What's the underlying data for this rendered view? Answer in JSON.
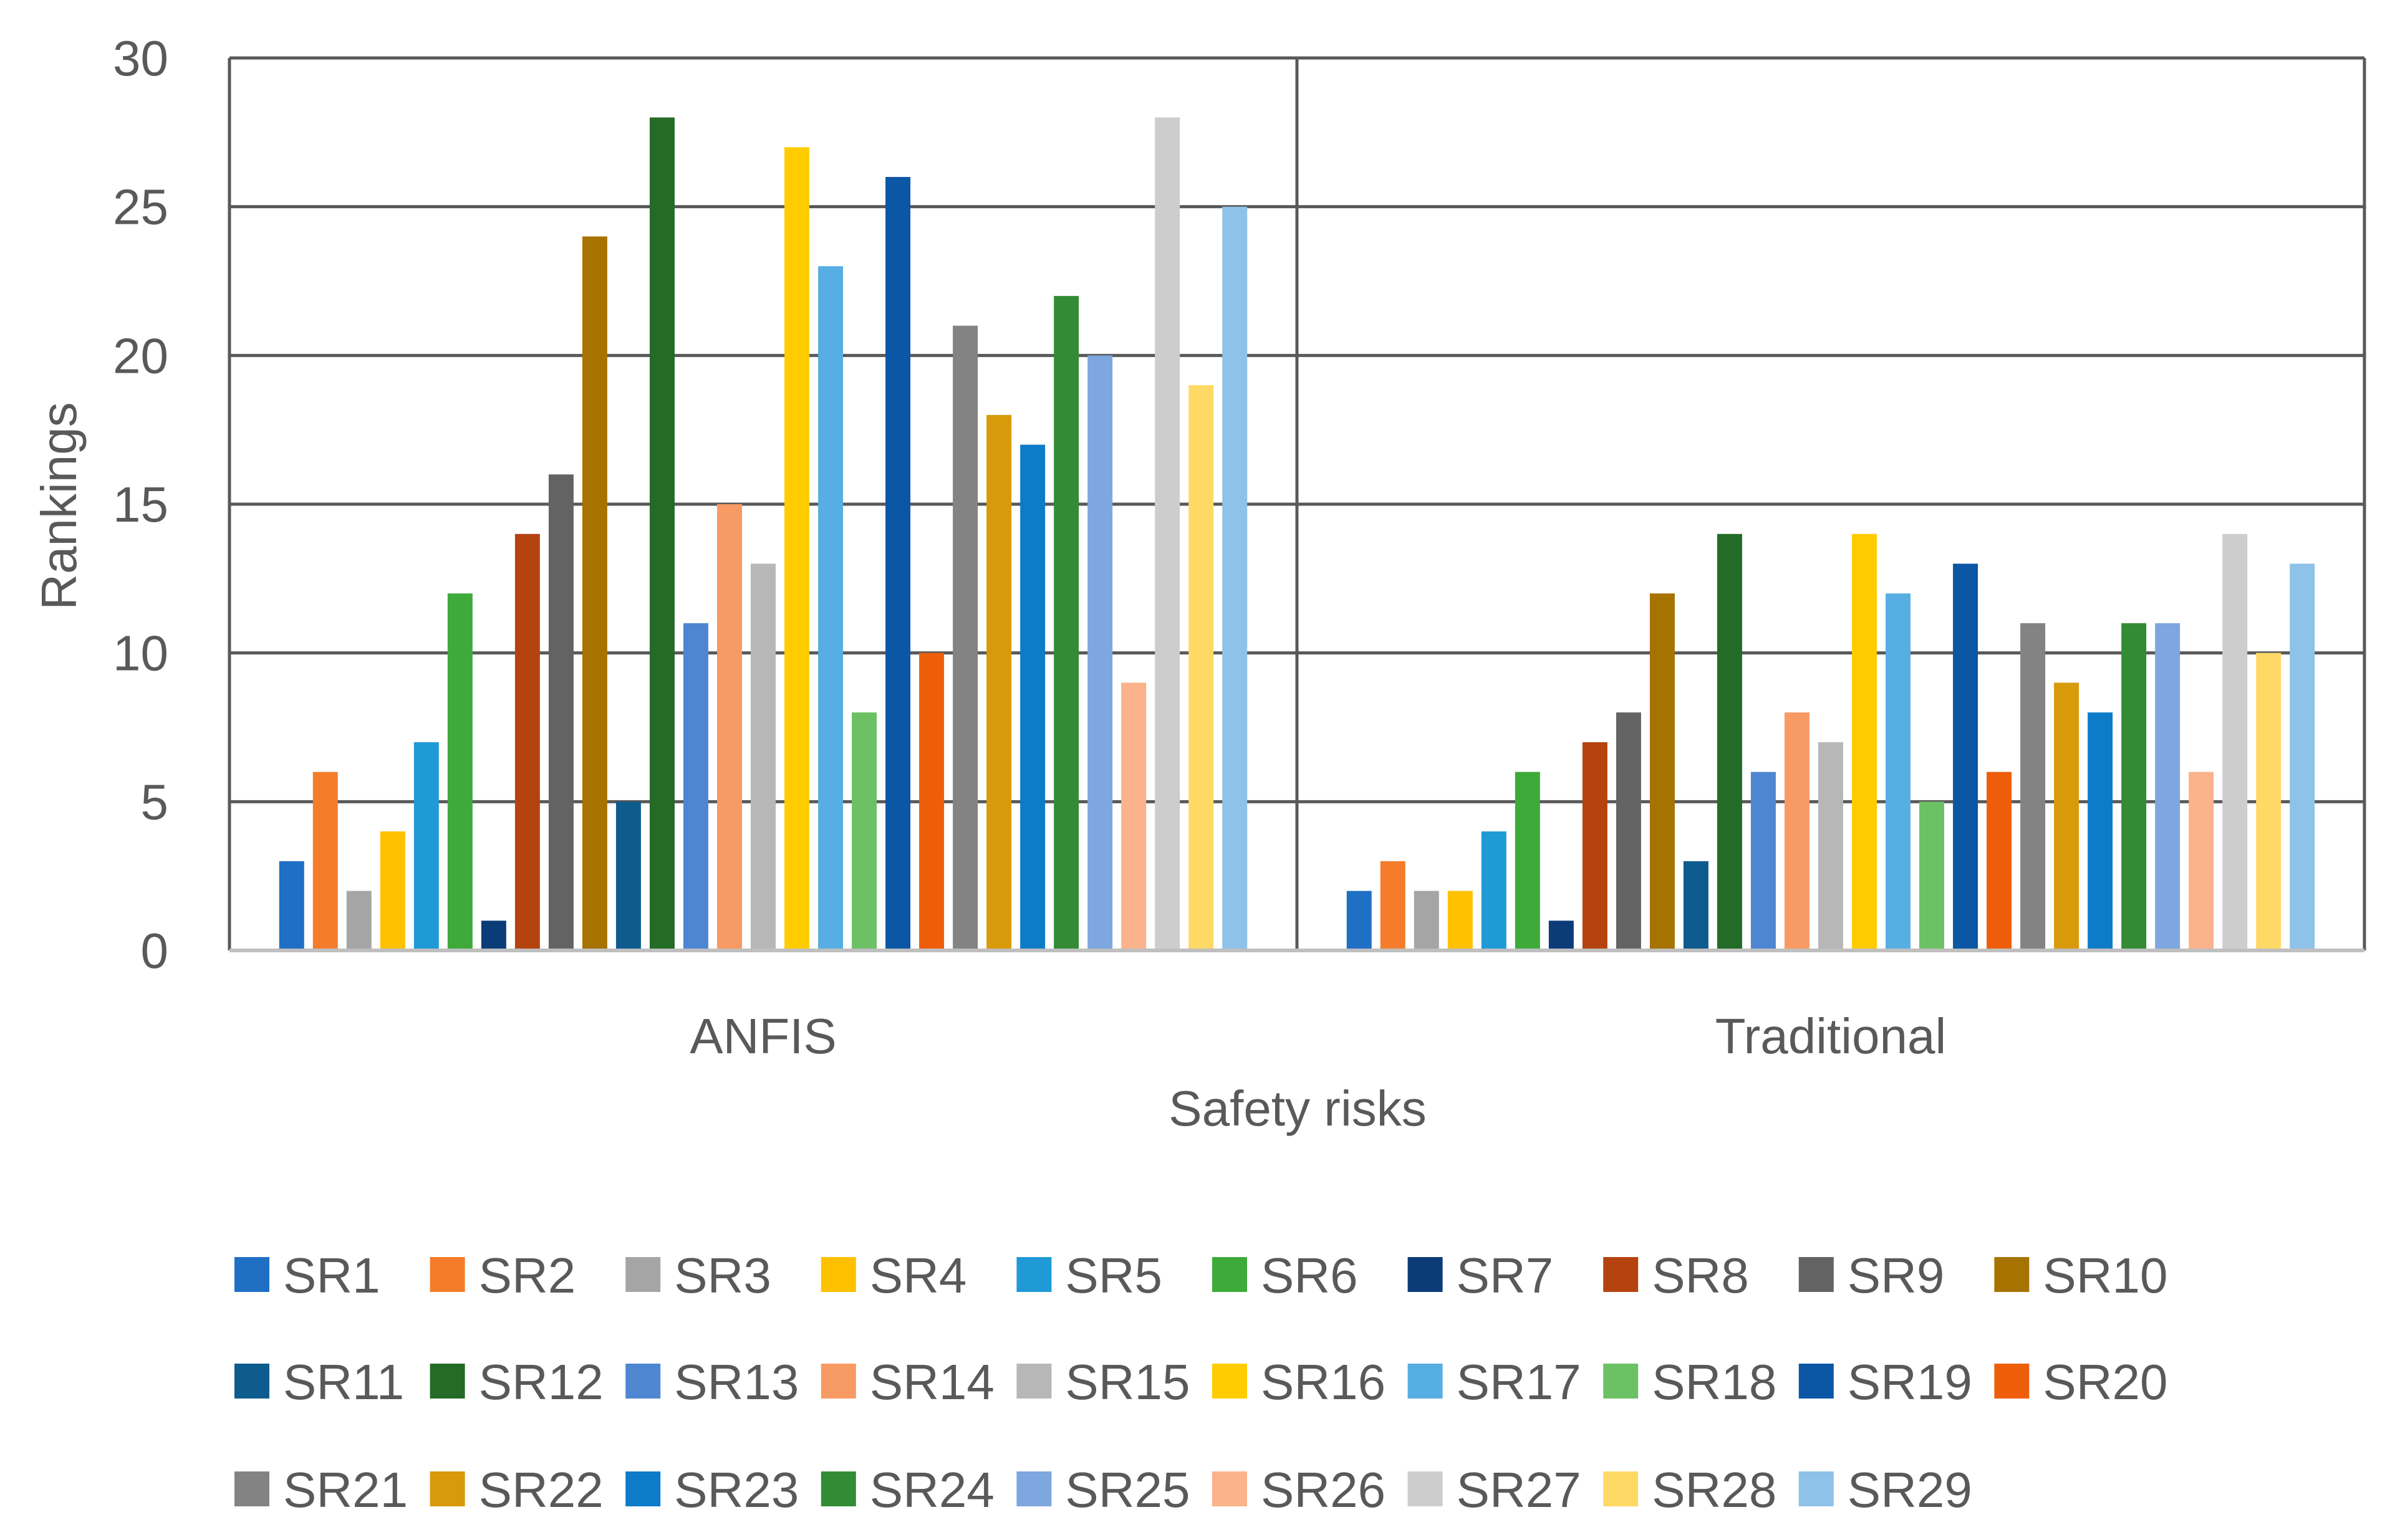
{
  "chart_data": {
    "type": "bar",
    "title": "",
    "xlabel": "Safety risks",
    "ylabel": "Rankings",
    "ylim": [
      0,
      30
    ],
    "yticks": [
      0,
      5,
      10,
      15,
      20,
      25,
      30
    ],
    "grid": true,
    "legend_position": "bottom",
    "categories": [
      "ANFIS",
      "Traditional"
    ],
    "series": [
      {
        "name": "SR1",
        "color": "#1F6FC5",
        "values": [
          3,
          2
        ]
      },
      {
        "name": "SR2",
        "color": "#F47C2A",
        "values": [
          6,
          3
        ]
      },
      {
        "name": "SR3",
        "color": "#A5A5A5",
        "values": [
          2,
          2
        ]
      },
      {
        "name": "SR4",
        "color": "#FFC000",
        "values": [
          4,
          2
        ]
      },
      {
        "name": "SR5",
        "color": "#1F9AD6",
        "values": [
          7,
          4
        ]
      },
      {
        "name": "SR6",
        "color": "#3DAA3A",
        "values": [
          12,
          6
        ]
      },
      {
        "name": "SR7",
        "color": "#0B3C78",
        "values": [
          1,
          1
        ]
      },
      {
        "name": "SR8",
        "color": "#B5430F",
        "values": [
          14,
          7
        ]
      },
      {
        "name": "SR9",
        "color": "#636363",
        "values": [
          16,
          8
        ]
      },
      {
        "name": "SR10",
        "color": "#A67200",
        "values": [
          24,
          12
        ]
      },
      {
        "name": "SR11",
        "color": "#0E5C8E",
        "values": [
          5,
          3
        ]
      },
      {
        "name": "SR12",
        "color": "#236B26",
        "values": [
          28,
          14
        ]
      },
      {
        "name": "SR13",
        "color": "#4E86D2",
        "values": [
          11,
          6
        ]
      },
      {
        "name": "SR14",
        "color": "#F79A63",
        "values": [
          15,
          8
        ]
      },
      {
        "name": "SR15",
        "color": "#B7B7B7",
        "values": [
          13,
          7
        ]
      },
      {
        "name": "SR16",
        "color": "#FFCC00",
        "values": [
          27,
          14
        ]
      },
      {
        "name": "SR17",
        "color": "#56AEE2",
        "values": [
          23,
          12
        ]
      },
      {
        "name": "SR18",
        "color": "#6CC165",
        "values": [
          8,
          5
        ]
      },
      {
        "name": "SR19",
        "color": "#0B56A5",
        "values": [
          26,
          13
        ]
      },
      {
        "name": "SR20",
        "color": "#EE5E0A",
        "values": [
          10,
          6
        ]
      },
      {
        "name": "SR21",
        "color": "#838383",
        "values": [
          21,
          11
        ]
      },
      {
        "name": "SR22",
        "color": "#D89A0B",
        "values": [
          18,
          9
        ]
      },
      {
        "name": "SR23",
        "color": "#0E7BC9",
        "values": [
          17,
          8
        ]
      },
      {
        "name": "SR24",
        "color": "#338C35",
        "values": [
          22,
          11
        ]
      },
      {
        "name": "SR25",
        "color": "#7EA6DF",
        "values": [
          20,
          11
        ]
      },
      {
        "name": "SR26",
        "color": "#FAB38B",
        "values": [
          9,
          6
        ]
      },
      {
        "name": "SR27",
        "color": "#CDCDCD",
        "values": [
          28,
          14
        ]
      },
      {
        "name": "SR28",
        "color": "#FFD966",
        "values": [
          19,
          10
        ]
      },
      {
        "name": "SR29",
        "color": "#8EC2E8",
        "values": [
          25,
          13
        ]
      }
    ]
  }
}
